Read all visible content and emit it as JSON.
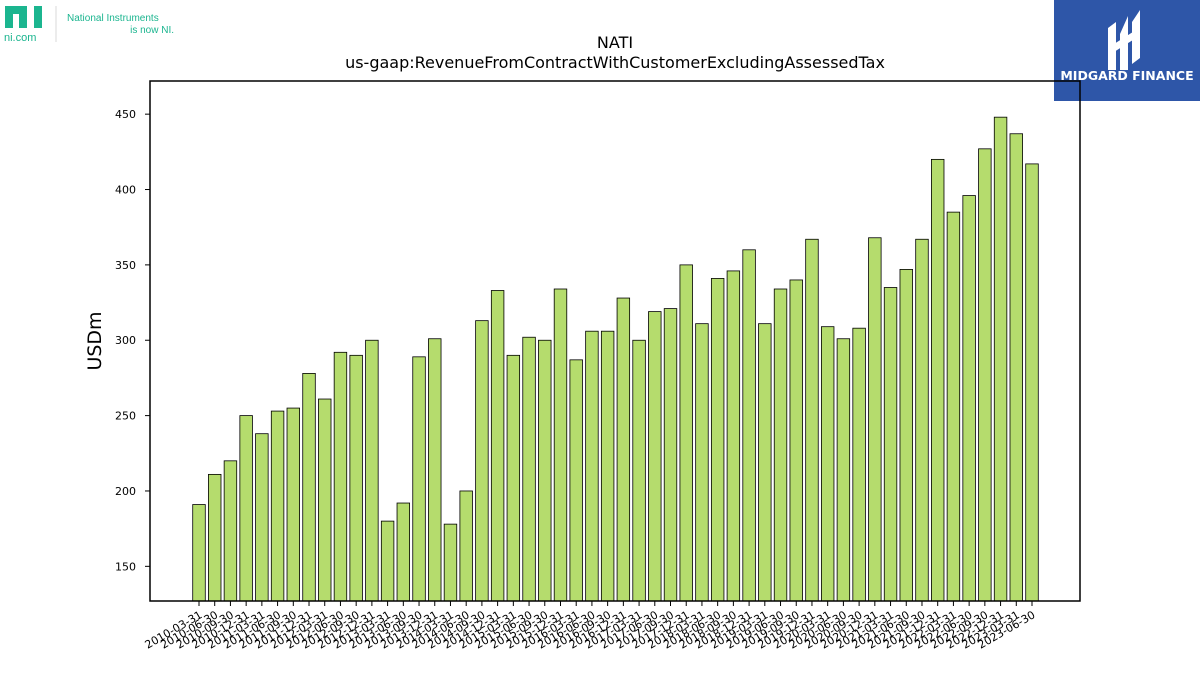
{
  "logos": {
    "left": {
      "mark": "ni",
      "site": "ni.com",
      "line1": "National Instruments",
      "line2": "is now NI.",
      "color": "#1bb58f"
    },
    "right": {
      "name": "MIDGARD FINANCE",
      "bg": "#2e56a8",
      "fg": "#ffffff"
    }
  },
  "chart_data": {
    "type": "bar",
    "title": "NATI",
    "subtitle": "us-gaap:RevenueFromContractWithCustomerExcludingAssessedTax",
    "ylabel": "USDm",
    "xlabel": "",
    "ylim": [
      127,
      472
    ],
    "yticks": [
      150,
      200,
      250,
      300,
      350,
      400,
      450
    ],
    "bar_color": "#b5dc6d",
    "edge_color": "#000000",
    "categories": [
      "2010-03-31",
      "2010-06-30",
      "2010-09-30",
      "2010-12-31",
      "2011-03-31",
      "2011-06-30",
      "2011-09-30",
      "2011-12-31",
      "2012-03-31",
      "2012-06-30",
      "2012-09-30",
      "2012-12-31",
      "2013-03-31",
      "2013-06-30",
      "2013-09-30",
      "2013-12-31",
      "2014-03-31",
      "2014-06-30",
      "2014-09-30",
      "2014-12-31",
      "2015-03-31",
      "2015-06-30",
      "2015-09-30",
      "2015-12-31",
      "2016-03-31",
      "2016-06-30",
      "2016-09-30",
      "2016-12-31",
      "2017-03-31",
      "2017-06-30",
      "2017-09-30",
      "2017-12-31",
      "2018-03-31",
      "2018-06-30",
      "2018-09-30",
      "2018-12-31",
      "2019-03-31",
      "2019-06-30",
      "2019-09-30",
      "2019-12-31",
      "2020-03-31",
      "2020-06-30",
      "2020-09-30",
      "2020-12-31",
      "2021-03-31",
      "2021-06-30",
      "2021-09-30",
      "2021-12-31",
      "2022-03-31",
      "2022-06-30",
      "2022-09-30",
      "2022-12-31",
      "2023-03-31",
      "2023-06-30"
    ],
    "values": [
      191,
      211,
      220,
      250,
      238,
      253,
      255,
      278,
      261,
      292,
      290,
      300,
      180,
      192,
      289,
      301,
      178,
      200,
      313,
      333,
      290,
      302,
      300,
      334,
      287,
      306,
      306,
      328,
      300,
      319,
      321,
      350,
      311,
      341,
      346,
      360,
      311,
      334,
      340,
      367,
      309,
      301,
      308,
      368,
      335,
      347,
      367,
      420,
      385,
      396,
      427,
      448,
      437,
      417
    ]
  }
}
